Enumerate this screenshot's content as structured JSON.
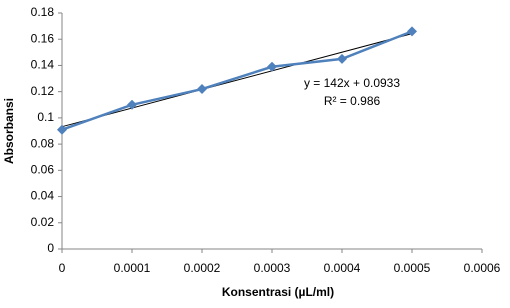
{
  "chart_data": {
    "type": "line",
    "x_label": "Konsentrasi (µL/ml)",
    "y_label": "Absorbansi",
    "x": [
      0,
      0.0001,
      0.0002,
      0.0003,
      0.0004,
      0.0005
    ],
    "values": [
      0.091,
      0.11,
      0.122,
      0.139,
      0.145,
      0.166
    ],
    "color": "#4f81bd",
    "trendline": {
      "x": [
        0,
        0.0005
      ],
      "values": [
        0.0933,
        0.1643
      ],
      "color": "#000000"
    },
    "annotations": [
      "y = 142x + 0.0933",
      "R² = 0.986"
    ],
    "xlim": [
      0,
      0.0006
    ],
    "xticks": [
      0,
      0.0001,
      0.0002,
      0.0003,
      0.0004,
      0.0005,
      0.0006
    ],
    "ylim": [
      0,
      0.18
    ],
    "yticks": [
      0,
      0.02,
      0.04,
      0.06,
      0.08,
      0.1,
      0.12,
      0.14,
      0.16,
      0.18
    ],
    "grid": false
  }
}
